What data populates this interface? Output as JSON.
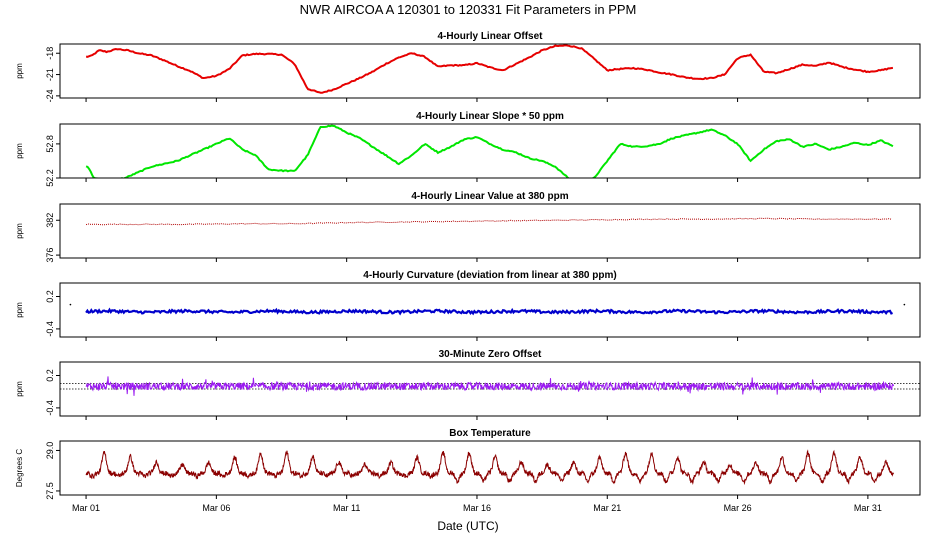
{
  "title": "NWR   AIRCOA A   120301 to 120331   Fit Parameters in PPM",
  "xlabel": "Date (UTC)",
  "chart_data": {
    "type": "line",
    "grid": false,
    "x_range": [
      "2012-02-29",
      "2012-04-02"
    ],
    "x_ticks": [
      "Mar 01",
      "Mar 06",
      "Mar 11",
      "Mar 16",
      "Mar 21",
      "Mar 26",
      "Mar 31"
    ],
    "panels": [
      {
        "title": "4-Hourly Linear Offset",
        "ylabel": "ppm",
        "color": "#e60000",
        "style": "line",
        "ylim": [
          -24.3,
          -16.7
        ],
        "yticks": [
          -18,
          -21,
          -24
        ],
        "yticklabels": [
          "-18",
          "-21",
          "-24"
        ],
        "x": [
          0,
          0.2,
          0.5,
          0.8,
          1.2,
          1.6,
          2,
          2.5,
          3,
          3.5,
          4,
          4.5,
          5,
          5.5,
          6,
          6.5,
          7,
          7.5,
          8,
          8.5,
          9,
          9.5,
          10,
          10.5,
          11,
          11.5,
          12,
          12.5,
          13,
          13.5,
          14,
          14.5,
          15,
          15.5,
          16,
          16.5,
          17,
          17.5,
          18,
          18.5,
          19,
          19.5,
          20,
          20.5,
          21,
          21.5,
          22,
          22.5,
          23,
          23.5,
          24,
          24.5,
          25,
          25.5,
          26,
          26.5,
          27,
          27.5,
          28,
          28.5,
          29,
          29.5,
          30,
          30.5,
          31
        ],
        "y": [
          -18.5,
          -18.4,
          -17.6,
          -17.8,
          -17.4,
          -17.6,
          -18,
          -18.3,
          -19,
          -19.8,
          -20.5,
          -21.5,
          -21.2,
          -20.2,
          -18.3,
          -18.1,
          -18.1,
          -18.2,
          -19.5,
          -23,
          -23.6,
          -23.1,
          -22.3,
          -21.5,
          -20.6,
          -19.5,
          -18.6,
          -18,
          -18.5,
          -19.9,
          -19.7,
          -19.7,
          -19.4,
          -20,
          -20.4,
          -19.5,
          -18.6,
          -17.6,
          -17,
          -16.9,
          -17.3,
          -18.8,
          -20.4,
          -20.2,
          -20.1,
          -20.3,
          -20.7,
          -21,
          -21.4,
          -21.6,
          -21.5,
          -21,
          -18.7,
          -18.2,
          -20.6,
          -20.8,
          -20.2,
          -19.6,
          -19.8,
          -19.3,
          -19.9,
          -20.3,
          -20.6,
          -20.4,
          -20
        ]
      },
      {
        "title": "4-Hourly Linear Slope * 50 ppm",
        "ylabel": "ppm",
        "color": "#00e600",
        "style": "line",
        "ylim": [
          52.2,
          53.15
        ],
        "yticks": [
          52.2,
          52.8
        ],
        "yticklabels": [
          "52.2",
          "52.8"
        ],
        "x": [
          0,
          0.1,
          0.3,
          0.6,
          1,
          1.5,
          2,
          2.5,
          3,
          3.5,
          4,
          4.5,
          5,
          5.5,
          6,
          6.5,
          7,
          7.5,
          8,
          8.5,
          9,
          9.5,
          10,
          10.5,
          11,
          11.5,
          12,
          12.5,
          13,
          13.5,
          14,
          14.5,
          15,
          15.5,
          16,
          16.5,
          17,
          17.5,
          18,
          18.5,
          19,
          19.5,
          20,
          20.5,
          21,
          21.5,
          22,
          22.5,
          23,
          23.5,
          24,
          24.5,
          25,
          25.5,
          26,
          26.5,
          27,
          27.5,
          28,
          28.5,
          29,
          29.5,
          30,
          30.5,
          31
        ],
        "y": [
          52.4,
          52.38,
          52.2,
          52.18,
          52.16,
          52.2,
          52.3,
          52.4,
          52.45,
          52.5,
          52.6,
          52.7,
          52.8,
          52.9,
          52.7,
          52.6,
          52.35,
          52.33,
          52.32,
          52.6,
          53.1,
          53.12,
          53,
          52.9,
          52.75,
          52.6,
          52.45,
          52.6,
          52.8,
          52.65,
          52.75,
          52.88,
          52.92,
          52.8,
          52.7,
          52.65,
          52.55,
          52.5,
          52.4,
          52.2,
          52.1,
          52.2,
          52.5,
          52.8,
          52.75,
          52.76,
          52.8,
          52.9,
          52.95,
          53.0,
          53.05,
          52.95,
          52.8,
          52.5,
          52.7,
          52.85,
          52.88,
          52.75,
          52.8,
          52.7,
          52.75,
          52.82,
          52.78,
          52.86,
          52.75
        ]
      },
      {
        "title": "4-Hourly Linear Value at 380 ppm",
        "ylabel": "ppm",
        "color": "#b00000",
        "style": "dots",
        "ylim": [
          375.5,
          384.8
        ],
        "yticks": [
          376,
          382
        ],
        "yticklabels": [
          "376",
          "382"
        ],
        "x": [
          0,
          2,
          4,
          6,
          8,
          10,
          12,
          14,
          16,
          18,
          20,
          22,
          24,
          26,
          28,
          30,
          31
        ],
        "y": [
          381.3,
          381.3,
          381.3,
          381.4,
          381.4,
          381.6,
          381.7,
          381.8,
          381.9,
          382,
          382.1,
          382.2,
          382.2,
          382.3,
          382.2,
          382.2,
          382.2
        ]
      },
      {
        "title": "4-Hourly Curvature (deviation from linear at 380 ppm)",
        "ylabel": "ppm",
        "color": "#0000cc",
        "style": "band",
        "ylim": [
          -0.55,
          0.45
        ],
        "yticks": [
          0.2,
          -0.4
        ],
        "yticklabels": [
          "0.2",
          "-0.4"
        ],
        "x": [
          0,
          31
        ],
        "y": [
          -0.08,
          -0.08
        ]
      },
      {
        "title": "30-Minute Zero Offset",
        "ylabel": "ppm",
        "color": "#9a1af0",
        "style": "noise",
        "ylim": [
          -0.55,
          0.45
        ],
        "yticks": [
          0.2,
          -0.4
        ],
        "yticklabels": [
          "0.2",
          "-0.4"
        ],
        "ref_lines": [
          0.05,
          -0.05
        ],
        "x": [
          0,
          31
        ],
        "y": [
          0,
          0
        ]
      },
      {
        "title": "Box Temperature",
        "ylabel": "Degrees C",
        "color": "#8b0000",
        "style": "temperature",
        "ylim": [
          27.35,
          29.35
        ],
        "yticks": [
          29.0,
          27.5
        ],
        "yticklabels": [
          "29.0",
          "27.5"
        ],
        "x": [
          0,
          31
        ],
        "y": [
          28.2,
          28.2
        ]
      }
    ]
  }
}
